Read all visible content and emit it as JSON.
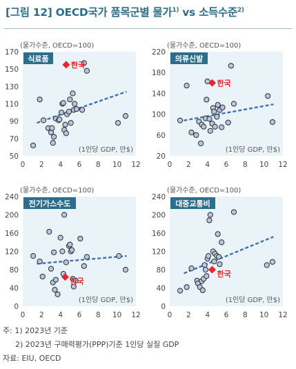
{
  "figure": {
    "label": "[그림 12]",
    "title": "OECD국가 품목군별 물가",
    "title_sup": "1)",
    "vs": "vs 소득수준",
    "vs_sup": "2)"
  },
  "notes": {
    "line1": "주: 1) 2023년 기준",
    "line2": "2) 2023년 구매력평가(PPP)기준 1인당 실질 GDP",
    "source": "자료: EIU, OECD"
  },
  "colors": {
    "title": "#2e6e86",
    "panel_bg": "#eaf3f7",
    "tag_bg": "#2c6f8c",
    "point_fill": "#b4c6e0",
    "point_stroke": "#2b2b2b",
    "trend": "#3f6fb5",
    "korea": "#e8262e"
  },
  "chart_data": [
    {
      "type": "scatter",
      "title": "식료품",
      "ylabel": "(물가수준, OECD=100)",
      "xlabel": "(1인당 GDP, 만$)",
      "xlim": [
        0,
        12
      ],
      "ylim": [
        50,
        170
      ],
      "xticks": [
        0,
        2,
        4,
        6,
        8,
        10,
        12
      ],
      "yticks": [
        50,
        70,
        90,
        110,
        130,
        150,
        170
      ],
      "points": [
        [
          1.1,
          62
        ],
        [
          1.8,
          115
        ],
        [
          2.2,
          91
        ],
        [
          2.7,
          82
        ],
        [
          3.0,
          77
        ],
        [
          3.2,
          65
        ],
        [
          3.3,
          72
        ],
        [
          3.1,
          82
        ],
        [
          3.5,
          93
        ],
        [
          3.8,
          91
        ],
        [
          3.9,
          92
        ],
        [
          4.1,
          100
        ],
        [
          4.2,
          110
        ],
        [
          4.3,
          111
        ],
        [
          4.4,
          80
        ],
        [
          4.5,
          86
        ],
        [
          4.6,
          76
        ],
        [
          4.7,
          98
        ],
        [
          4.9,
          101
        ],
        [
          5.0,
          115
        ],
        [
          5.1,
          88
        ],
        [
          5.3,
          122
        ],
        [
          5.4,
          103
        ],
        [
          5.5,
          110
        ],
        [
          5.7,
          104
        ],
        [
          6.3,
          103
        ],
        [
          6.5,
          157
        ],
        [
          6.8,
          148
        ],
        [
          10.1,
          88
        ],
        [
          10.9,
          96
        ]
      ],
      "korea": {
        "label": "한국",
        "x": 4.6,
        "y": 155
      },
      "trend": {
        "x": [
          1.5,
          11.0
        ],
        "y": [
          88,
          124
        ]
      }
    },
    {
      "type": "scatter",
      "title": "의류신발",
      "ylabel": "(물가수준, OECD=100)",
      "xlabel": "(1인당 GDP, 만$)",
      "xlim": [
        0,
        12
      ],
      "ylim": [
        20,
        220
      ],
      "xticks": [
        0,
        2,
        4,
        6,
        8,
        10,
        12
      ],
      "yticks": [
        20,
        60,
        100,
        140,
        180,
        220
      ],
      "points": [
        [
          1.1,
          88
        ],
        [
          1.8,
          155
        ],
        [
          2.3,
          65
        ],
        [
          2.8,
          60
        ],
        [
          3.1,
          86
        ],
        [
          3.3,
          44
        ],
        [
          3.4,
          80
        ],
        [
          3.6,
          76
        ],
        [
          3.8,
          92
        ],
        [
          3.9,
          128
        ],
        [
          4.0,
          163
        ],
        [
          4.2,
          91
        ],
        [
          4.3,
          68
        ],
        [
          4.5,
          82
        ],
        [
          4.6,
          112
        ],
        [
          4.7,
          105
        ],
        [
          4.8,
          76
        ],
        [
          5.0,
          95
        ],
        [
          5.1,
          118
        ],
        [
          5.3,
          108
        ],
        [
          5.5,
          75
        ],
        [
          5.6,
          113
        ],
        [
          6.2,
          84
        ],
        [
          6.8,
          120
        ],
        [
          6.5,
          193
        ],
        [
          10.4,
          135
        ],
        [
          10.9,
          85
        ]
      ],
      "korea": {
        "label": "한국",
        "x": 4.5,
        "y": 160
      },
      "trend": {
        "x": [
          1.5,
          11.0
        ],
        "y": [
          88,
          119
        ]
      }
    },
    {
      "type": "scatter",
      "title": "전기가스수도",
      "ylabel": "(물가수준, OECD=100)",
      "xlabel": "(1인당 GDP, 만$)",
      "xlim": [
        0,
        12
      ],
      "ylim": [
        0,
        240
      ],
      "xticks": [
        0,
        2,
        4,
        6,
        8,
        10,
        12
      ],
      "yticks": [
        0,
        40,
        80,
        120,
        160,
        200,
        240
      ],
      "points": [
        [
          1.1,
          110
        ],
        [
          1.8,
          98
        ],
        [
          2.1,
          65
        ],
        [
          2.8,
          163
        ],
        [
          3.0,
          82
        ],
        [
          3.2,
          52
        ],
        [
          3.3,
          118
        ],
        [
          3.4,
          36
        ],
        [
          3.5,
          58
        ],
        [
          3.7,
          26
        ],
        [
          4.0,
          150
        ],
        [
          4.2,
          120
        ],
        [
          4.3,
          71
        ],
        [
          4.4,
          200
        ],
        [
          4.6,
          96
        ],
        [
          4.9,
          132
        ],
        [
          5.0,
          135
        ],
        [
          5.1,
          120
        ],
        [
          5.2,
          123
        ],
        [
          5.3,
          60
        ],
        [
          5.4,
          43
        ],
        [
          5.6,
          56
        ],
        [
          6.1,
          148
        ],
        [
          6.5,
          88
        ],
        [
          6.8,
          108
        ],
        [
          10.2,
          110
        ],
        [
          10.9,
          80
        ]
      ],
      "korea": {
        "label": "한국",
        "x": 4.5,
        "y": 64
      },
      "trend": {
        "x": [
          1.5,
          11.0
        ],
        "y": [
          93,
          110
        ]
      }
    },
    {
      "type": "scatter",
      "title": "대중교통비",
      "ylabel": "(물가수준, OECD=100)",
      "xlabel": "(1인당 GDP, 만$)",
      "xlim": [
        0,
        12
      ],
      "ylim": [
        0,
        240
      ],
      "xticks": [
        0,
        2,
        4,
        6,
        8,
        10,
        12
      ],
      "yticks": [
        0,
        40,
        80,
        120,
        160,
        200,
        240
      ],
      "points": [
        [
          1.1,
          34
        ],
        [
          1.8,
          42
        ],
        [
          2.3,
          83
        ],
        [
          2.9,
          56
        ],
        [
          3.0,
          50
        ],
        [
          3.2,
          42
        ],
        [
          3.4,
          55
        ],
        [
          3.5,
          35
        ],
        [
          3.6,
          60
        ],
        [
          3.7,
          90
        ],
        [
          3.8,
          80
        ],
        [
          3.9,
          66
        ],
        [
          4.0,
          104
        ],
        [
          4.1,
          110
        ],
        [
          4.2,
          188
        ],
        [
          4.3,
          200
        ],
        [
          4.6,
          120
        ],
        [
          4.7,
          98
        ],
        [
          4.8,
          115
        ],
        [
          5.0,
          110
        ],
        [
          5.1,
          158
        ],
        [
          5.2,
          108
        ],
        [
          5.3,
          92
        ],
        [
          5.5,
          140
        ],
        [
          6.8,
          206
        ],
        [
          10.3,
          90
        ],
        [
          10.9,
          97
        ]
      ],
      "korea": {
        "label": "한국",
        "x": 4.5,
        "y": 80
      },
      "trend": {
        "x": [
          1.5,
          11.0
        ],
        "y": [
          72,
          152
        ]
      }
    }
  ]
}
